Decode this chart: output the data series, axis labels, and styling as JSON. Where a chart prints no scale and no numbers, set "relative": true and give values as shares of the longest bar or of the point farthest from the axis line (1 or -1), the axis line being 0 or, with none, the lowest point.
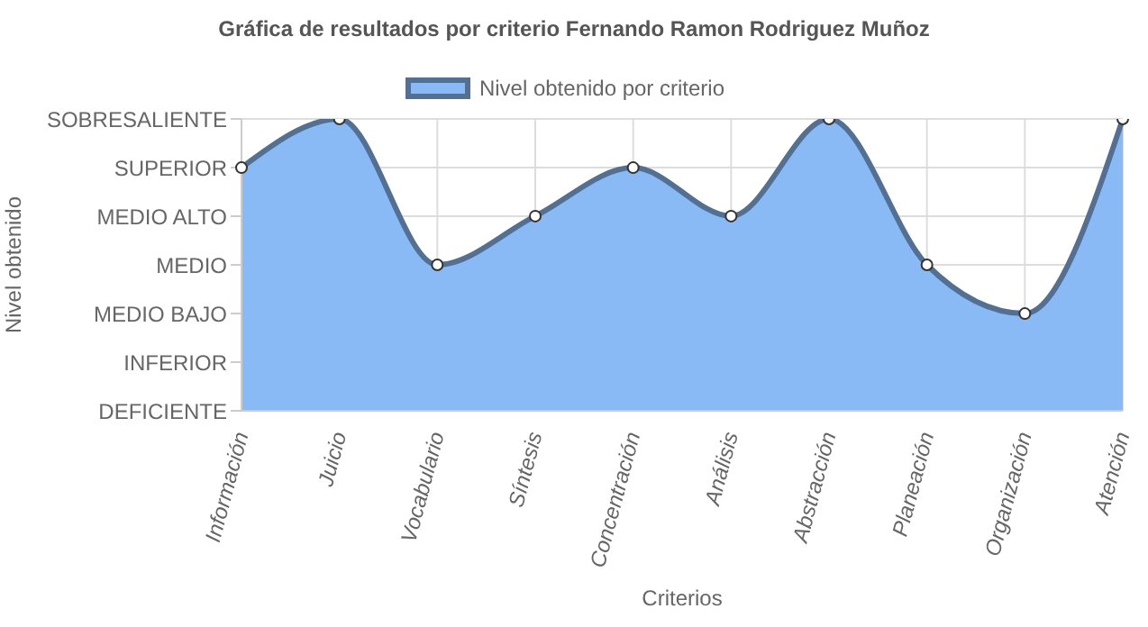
{
  "chart_data": {
    "type": "area",
    "title": "Gráfica de resultados por criterio Fernando Ramon Rodriguez Muñoz",
    "xlabel": "Criterios",
    "categories": [
      "Información",
      "Juicio",
      "Vocabulario",
      "Síntesis",
      "Concentración",
      "Análisis",
      "Abstracción",
      "Planeación",
      "Organización",
      "Atención"
    ],
    "series": [
      {
        "name": "Nivel obtenido por criterio",
        "color": "#8abaf5",
        "values": [
          0.833,
          1,
          0.5,
          0.667,
          0.833,
          0.667,
          1,
          0.5,
          0.333,
          1
        ]
      }
    ],
    "relative": true,
    "annotations": [
      "Nivel obtenido",
      "SOBRESALIENTE",
      "SUPERIOR",
      "MEDIO ALTO",
      "MEDIO",
      "MEDIO BAJO",
      "INFERIOR",
      "DEFICIENTE"
    ],
    "grid": true,
    "legend": "top",
    "marker": "circle",
    "line_style": "solid"
  }
}
